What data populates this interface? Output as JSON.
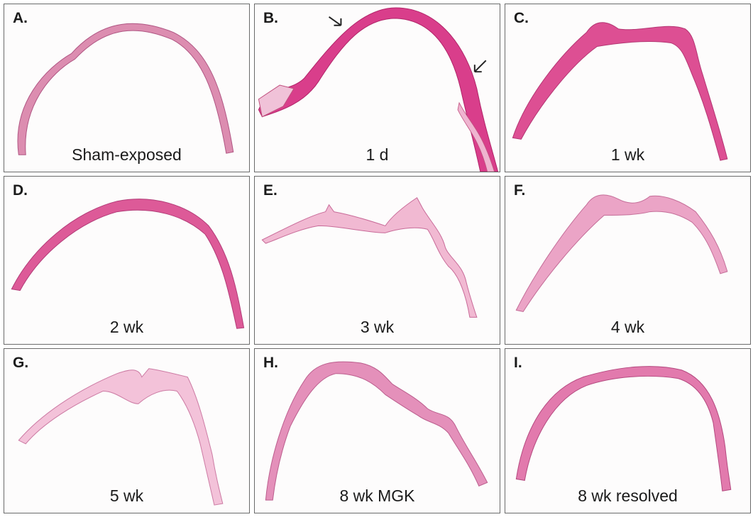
{
  "panels": [
    {
      "letter": "A.",
      "caption": "Sham-exposed"
    },
    {
      "letter": "B.",
      "caption": "1 d"
    },
    {
      "letter": "C.",
      "caption": "1 wk"
    },
    {
      "letter": "D.",
      "caption": "2 wk"
    },
    {
      "letter": "E.",
      "caption": "3 wk"
    },
    {
      "letter": "F.",
      "caption": "4 wk"
    },
    {
      "letter": "G.",
      "caption": "5 wk"
    },
    {
      "letter": "H.",
      "caption": "8 wk MGK"
    },
    {
      "letter": "I.",
      "caption": "8 wk resolved"
    }
  ],
  "colors": {
    "stain_dark": "#d63a86",
    "stain_medium": "#e27ab0",
    "stain_light": "#f1c2da",
    "border": "#6a6a6a"
  }
}
